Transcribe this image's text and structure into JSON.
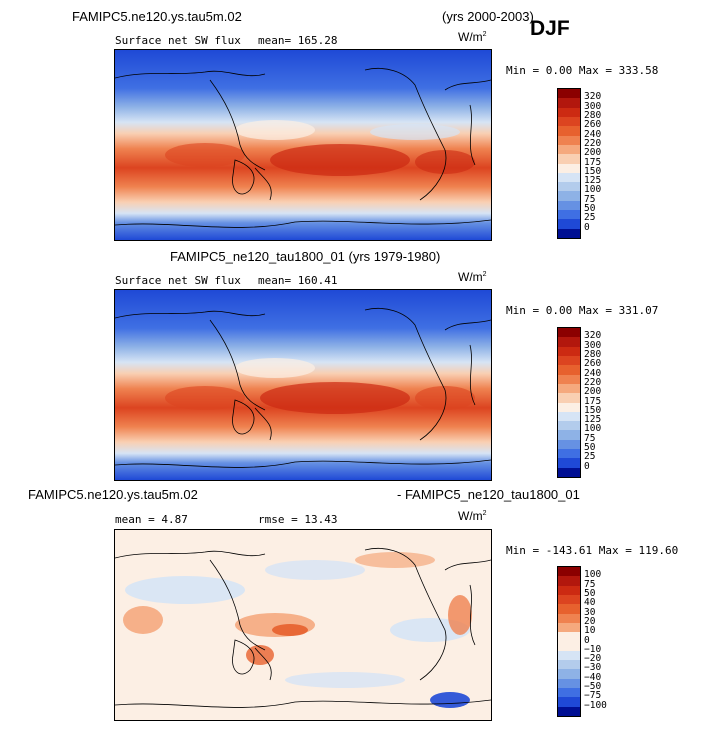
{
  "header": {
    "run_name": "FAMIPC5.ne120.ys.tau5m.02",
    "years": "(yrs 2000-2003)",
    "season": "DJF"
  },
  "panel1": {
    "variable": "Surface net SW flux",
    "mean": "mean= 165.28",
    "units_base": "W/m",
    "units_exp": "2",
    "minmax": "Min =   0.00 Max = 333.58"
  },
  "panel2": {
    "title": "FAMIPC5_ne120_tau1800_01 (yrs 1979-1980)",
    "variable": "Surface net SW flux",
    "mean": "mean= 160.41",
    "units_base": "W/m",
    "units_exp": "2",
    "minmax": "Min =   0.00 Max = 331.07"
  },
  "panel3": {
    "title_left": "FAMIPC5.ne120.ys.tau5m.02",
    "title_right": "- FAMIPC5_ne120_tau1800_01",
    "mean": "mean =   4.87",
    "rmse": "rmse =  13.43",
    "units_base": "W/m",
    "units_exp": "2",
    "minmax": "Min = -143.61 Max = 119.60"
  },
  "colorbar_abs": {
    "labels": [
      "320",
      "300",
      "280",
      "260",
      "240",
      "220",
      "200",
      "175",
      "150",
      "125",
      "100",
      "75",
      "50",
      "25",
      "0"
    ],
    "colors": [
      "#8b0000",
      "#b2170d",
      "#cc2a12",
      "#dc4420",
      "#e7612e",
      "#ef8250",
      "#f5a97e",
      "#f9cfb2",
      "#fcefe4",
      "#d6e4f5",
      "#b3ccec",
      "#8eb2e6",
      "#6691e3",
      "#3f6fe3",
      "#1f49d6",
      "#000f93"
    ]
  },
  "colorbar_diff": {
    "labels": [
      "100",
      "75",
      "50",
      "40",
      "30",
      "20",
      "10",
      "0",
      "−10",
      "−20",
      "−30",
      "−40",
      "−50",
      "−75",
      "−100"
    ],
    "colors": [
      "#8b0000",
      "#b2170d",
      "#cc2a12",
      "#dc4420",
      "#e7612e",
      "#ef8250",
      "#f5a97e",
      "#fcefe4",
      "#fcefe4",
      "#d6e4f5",
      "#b3ccec",
      "#8eb2e6",
      "#6691e3",
      "#3f6fe3",
      "#1f49d6",
      "#000f93"
    ]
  }
}
